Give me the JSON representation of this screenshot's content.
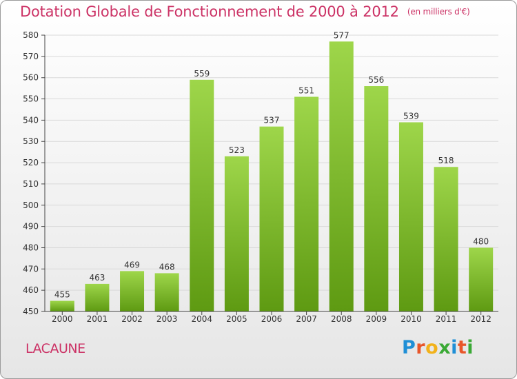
{
  "header": {
    "title": "Dotation Globale de Fonctionnement de 2000 à 2012",
    "subtitle": "(en milliers d'€)"
  },
  "commune": "LACAUNE",
  "logo": {
    "text": "Proxiti",
    "letter_colors": [
      "#1f8fd6",
      "#e8562a",
      "#f2b21b",
      "#3aa935",
      "#1f8fd6",
      "#e8562a",
      "#3aa935"
    ]
  },
  "colors": {
    "title": "#cc3366",
    "bar_top": "#9ed64a",
    "bar_bottom": "#5e9a12",
    "grid": "#d9d9d9",
    "axis": "#444444"
  },
  "chart_data": {
    "type": "bar",
    "categories": [
      "2000",
      "2001",
      "2002",
      "2003",
      "2004",
      "2005",
      "2006",
      "2007",
      "2008",
      "2009",
      "2010",
      "2011",
      "2012"
    ],
    "values": [
      455,
      463,
      469,
      468,
      559,
      523,
      537,
      551,
      577,
      556,
      539,
      518,
      480
    ],
    "ylim": [
      450,
      580
    ],
    "yticks": [
      450,
      460,
      470,
      480,
      490,
      500,
      510,
      520,
      530,
      540,
      550,
      560,
      570,
      580
    ],
    "grid": true,
    "data_labels": true
  }
}
